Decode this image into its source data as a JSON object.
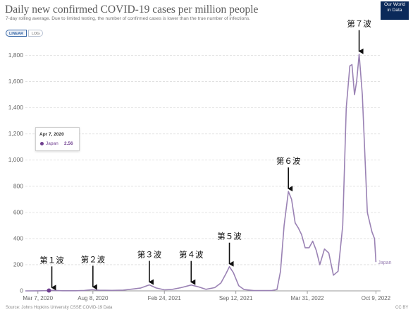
{
  "header": {
    "title": "Daily new confirmed COVID-19 cases per million people",
    "subtitle": "7-day rolling average. Due to limited testing, the number of confirmed cases is lower than the true number of infections."
  },
  "logo": {
    "line1": "Our World",
    "line2": "in Data",
    "bg": "#0b2a5a"
  },
  "scale_toggle": {
    "linear_label": "LINEAR",
    "log_label": "LOG",
    "selected": "LINEAR"
  },
  "tooltip": {
    "date": "Apr 7, 2020",
    "series": "Japan",
    "value": "2.56"
  },
  "footer": {
    "source": "Source: Johns Hopkins University CSSE COVID-19 Data",
    "license": "CC BY"
  },
  "colors": {
    "series": "#9a82b4",
    "marker": "#6f3e8f",
    "grid": "#dddddd"
  },
  "chart_data": {
    "type": "line",
    "title": "Daily new confirmed COVID-19 cases per million people",
    "subtitle": "7-day rolling average. Due to limited testing, the number of confirmed cases is lower than the true number of infections.",
    "ylim": [
      0,
      1900
    ],
    "ytick_values": [
      0,
      200,
      400,
      600,
      800,
      1000,
      1200,
      1400,
      1600,
      1800
    ],
    "ytick_labels": [
      "0",
      "200",
      "400",
      "600",
      "800",
      "1,000",
      "1,200",
      "1,400",
      "1,600",
      "1,800"
    ],
    "xlim": [
      "2020-02-01",
      "2022-10-22"
    ],
    "xticks": [
      {
        "date": "2020-03-07",
        "label": "Mar 7, 2020"
      },
      {
        "date": "2020-08-08",
        "label": "Aug 8, 2020"
      },
      {
        "date": "2021-02-24",
        "label": "Feb 24, 2021"
      },
      {
        "date": "2021-09-12",
        "label": "Sep 12, 2021"
      },
      {
        "date": "2022-03-31",
        "label": "Mar 31, 2022"
      },
      {
        "date": "2022-10-09",
        "label": "Oct 9, 2022"
      }
    ],
    "grid": "horizontal",
    "series": [
      {
        "name": "Japan",
        "points": [
          [
            "2020-02-01",
            0
          ],
          [
            "2020-03-07",
            0.5
          ],
          [
            "2020-04-07",
            2.56
          ],
          [
            "2020-04-18",
            4
          ],
          [
            "2020-05-15",
            1
          ],
          [
            "2020-06-20",
            1
          ],
          [
            "2020-07-15",
            3
          ],
          [
            "2020-08-05",
            9
          ],
          [
            "2020-08-25",
            5
          ],
          [
            "2020-10-01",
            4
          ],
          [
            "2020-11-01",
            6
          ],
          [
            "2020-12-01",
            15
          ],
          [
            "2020-12-20",
            22
          ],
          [
            "2021-01-13",
            46
          ],
          [
            "2021-02-01",
            22
          ],
          [
            "2021-02-24",
            8
          ],
          [
            "2021-03-15",
            10
          ],
          [
            "2021-04-10",
            24
          ],
          [
            "2021-05-10",
            45
          ],
          [
            "2021-05-31",
            30
          ],
          [
            "2021-06-20",
            12
          ],
          [
            "2021-07-15",
            25
          ],
          [
            "2021-08-01",
            60
          ],
          [
            "2021-08-15",
            130
          ],
          [
            "2021-08-25",
            185
          ],
          [
            "2021-09-05",
            140
          ],
          [
            "2021-09-20",
            40
          ],
          [
            "2021-10-05",
            10
          ],
          [
            "2021-11-01",
            2
          ],
          [
            "2021-12-20",
            2
          ],
          [
            "2022-01-05",
            10
          ],
          [
            "2022-01-15",
            150
          ],
          [
            "2022-01-25",
            500
          ],
          [
            "2022-02-06",
            760
          ],
          [
            "2022-02-15",
            700
          ],
          [
            "2022-02-25",
            520
          ],
          [
            "2022-03-06",
            480
          ],
          [
            "2022-03-15",
            430
          ],
          [
            "2022-03-25",
            330
          ],
          [
            "2022-04-05",
            330
          ],
          [
            "2022-04-15",
            380
          ],
          [
            "2022-04-25",
            310
          ],
          [
            "2022-05-05",
            200
          ],
          [
            "2022-05-18",
            320
          ],
          [
            "2022-05-30",
            290
          ],
          [
            "2022-06-12",
            120
          ],
          [
            "2022-06-25",
            150
          ],
          [
            "2022-07-08",
            500
          ],
          [
            "2022-07-18",
            1400
          ],
          [
            "2022-07-28",
            1720
          ],
          [
            "2022-08-03",
            1730
          ],
          [
            "2022-08-10",
            1500
          ],
          [
            "2022-08-16",
            1600
          ],
          [
            "2022-08-23",
            1810
          ],
          [
            "2022-09-01",
            1500
          ],
          [
            "2022-09-15",
            600
          ],
          [
            "2022-09-28",
            450
          ],
          [
            "2022-10-05",
            400
          ],
          [
            "2022-10-09",
            220
          ]
        ]
      }
    ],
    "annotations": [
      {
        "label": "第１波",
        "date": "2020-04-15"
      },
      {
        "label": "第２波",
        "date": "2020-08-08"
      },
      {
        "label": "第３波",
        "date": "2021-01-13"
      },
      {
        "label": "第４波",
        "date": "2021-05-10"
      },
      {
        "label": "第５波",
        "date": "2021-08-25"
      },
      {
        "label": "第６波",
        "date": "2022-02-06"
      },
      {
        "label": "第７波",
        "date": "2022-08-23"
      }
    ],
    "end_label": "Japan"
  }
}
